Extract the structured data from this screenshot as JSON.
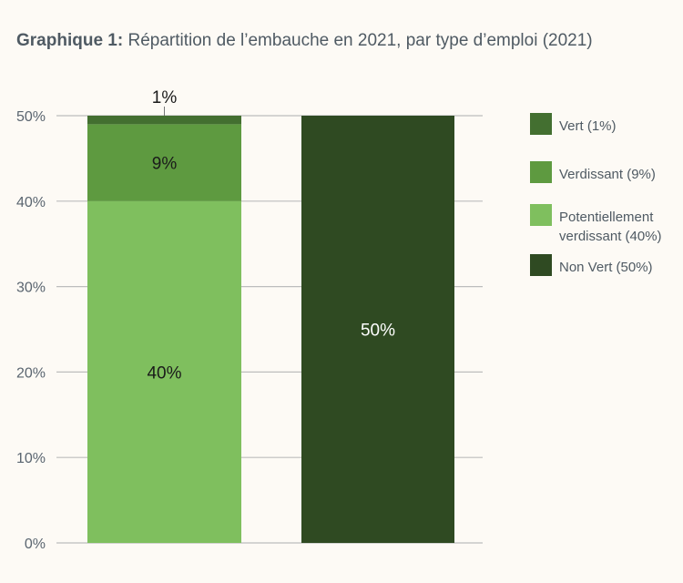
{
  "chart_data": {
    "type": "bar",
    "stacked": true,
    "title_bold": "Graphique 1:",
    "title": "Répartition de l’embauche en 2021, par type d’emploi (2021)",
    "ylim": [
      0,
      50
    ],
    "yticks": [
      "0%",
      "10%",
      "20%",
      "30%",
      "40%",
      "50%"
    ],
    "ytick_values": [
      0,
      10,
      20,
      30,
      40,
      50
    ],
    "grid": true,
    "legend_position": "right",
    "series": [
      {
        "name": "Potentiellement verdissant (40%)",
        "color": "#7fbf5e",
        "values": [
          40,
          0
        ],
        "label": "40%",
        "label_color": "#1a1a1a"
      },
      {
        "name": "Verdissant (9%)",
        "color": "#5e9a40",
        "values": [
          9,
          0
        ],
        "label": "9%",
        "label_color": "#1a1a1a"
      },
      {
        "name": "Vert (1%)",
        "color": "#436f30",
        "values": [
          1,
          0
        ],
        "label": "1%",
        "label_color": "#1a1a1a"
      },
      {
        "name": "Non Vert (50%)",
        "color": "#2f4a22",
        "values": [
          0,
          50
        ],
        "label": "50%",
        "label_color": "#ffffff"
      }
    ],
    "legend_order": [
      2,
      1,
      0,
      3
    ]
  }
}
